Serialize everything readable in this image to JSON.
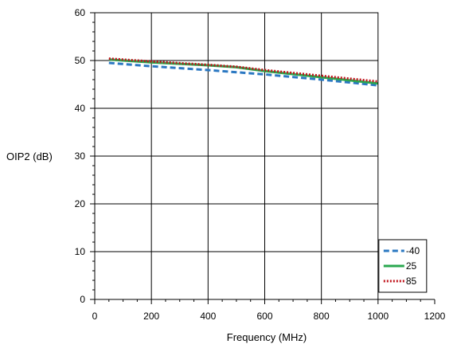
{
  "chart_data": {
    "type": "line",
    "title": "",
    "xlabel": "Frequency (MHz)",
    "ylabel": "OIP2 (dB)",
    "xlim": [
      0,
      1200
    ],
    "ylim": [
      0,
      60
    ],
    "x_ticks": [
      0,
      200,
      400,
      600,
      800,
      1000,
      1200
    ],
    "y_ticks": [
      0,
      10,
      20,
      30,
      40,
      50,
      60
    ],
    "x_minor_step": 50,
    "y_minor_step": 2,
    "grid": true,
    "legend_position": "bottom-right",
    "series": [
      {
        "name": "-40",
        "color": "#2b78c2",
        "style": "dashed",
        "x": [
          50,
          200,
          400,
          600,
          800,
          1000
        ],
        "y": [
          49.5,
          48.8,
          48.0,
          47.1,
          46.0,
          44.8
        ]
      },
      {
        "name": "25",
        "color": "#2aa84f",
        "style": "solid",
        "x": [
          50,
          200,
          400,
          500,
          600,
          800,
          1000
        ],
        "y": [
          50.2,
          49.6,
          49.0,
          48.6,
          47.8,
          46.5,
          45.2
        ]
      },
      {
        "name": "85",
        "color": "#c0141c",
        "style": "dotted",
        "x": [
          50,
          200,
          400,
          500,
          600,
          800,
          1000
        ],
        "y": [
          50.4,
          49.8,
          49.1,
          48.7,
          48.0,
          46.8,
          45.6
        ]
      }
    ]
  }
}
